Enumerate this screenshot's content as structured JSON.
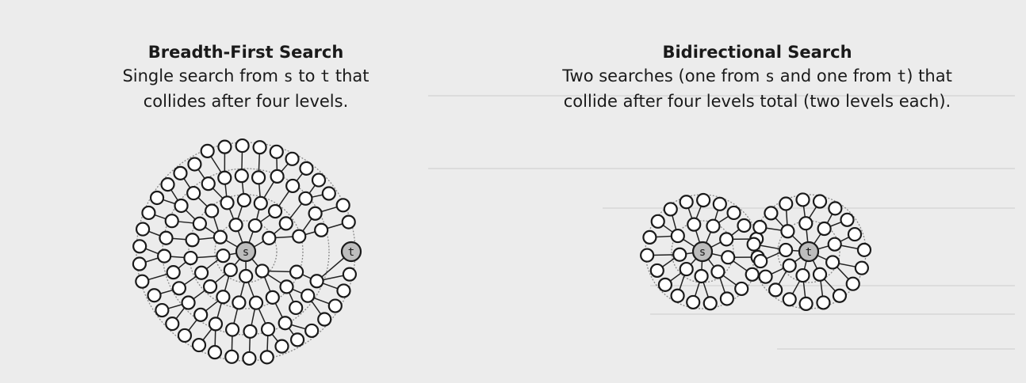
{
  "bfs": {
    "title": "Breadth-First Search",
    "line1_pre": "Single search from ",
    "line1_s": "s",
    "line1_mid": " to ",
    "line1_t": "t",
    "line1_post": " that",
    "line2": "collides after four levels."
  },
  "bidi": {
    "title": "Bidirectional Search",
    "line1_pre": "Two searches (one from ",
    "line1_s": "s",
    "line1_mid": " and one from ",
    "line1_t": "t",
    "line1_post": ") that",
    "line2": "collide after four levels total (two levels each)."
  },
  "labels": {
    "source": "s",
    "target": "t"
  },
  "graph": {
    "bfs_levels": 4,
    "bidi_levels_each": 2
  }
}
